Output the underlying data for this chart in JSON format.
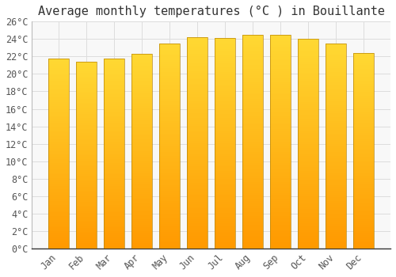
{
  "title": "Average monthly temperatures (°C ) in Bouillante",
  "months": [
    "Jan",
    "Feb",
    "Mar",
    "Apr",
    "May",
    "Jun",
    "Jul",
    "Aug",
    "Sep",
    "Oct",
    "Nov",
    "Dec"
  ],
  "values": [
    21.8,
    21.4,
    21.8,
    22.3,
    23.5,
    24.2,
    24.1,
    24.5,
    24.5,
    24.0,
    23.5,
    22.4
  ],
  "bar_color_top": "#FFC040",
  "bar_color_bottom": "#FFA000",
  "bar_edge_color": "#B8860B",
  "background_color": "#FFFFFF",
  "plot_bg_color": "#F8F8F8",
  "grid_color": "#DDDDDD",
  "ylim": [
    0,
    26
  ],
  "ytick_step": 2,
  "title_fontsize": 11,
  "tick_fontsize": 8.5,
  "font_family": "monospace",
  "bar_width": 0.75
}
